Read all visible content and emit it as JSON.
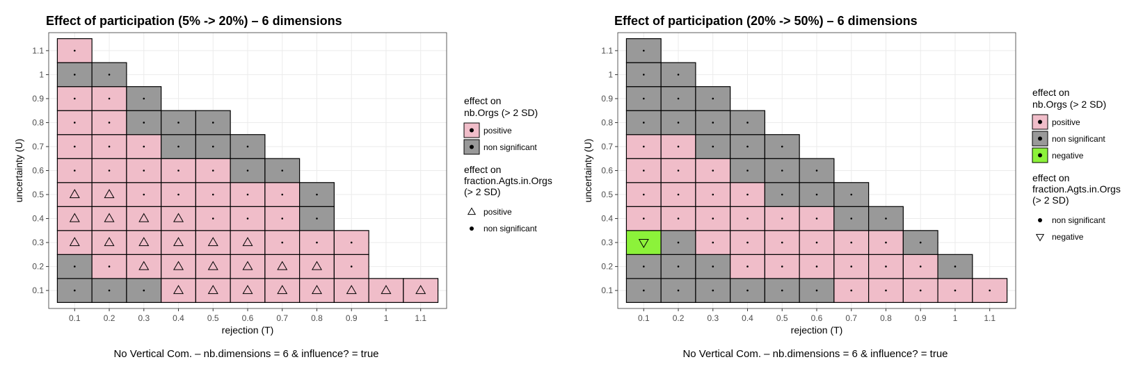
{
  "colors": {
    "positive": "#f0bdc9",
    "non_significant": "#999999",
    "negative": "#8cf23a"
  },
  "chart_data": [
    {
      "type": "heatmap",
      "title": "Effect of participation (5% -> 20%) – 6 dimensions",
      "xlabel": "rejection (T)",
      "ylabel": "uncertainty (U)",
      "caption": "No Vertical Com. – nb.dimensions = 6 & influence? = true",
      "x_ticks": [
        "0.1",
        "0.2",
        "0.3",
        "0.4",
        "0.5",
        "0.6",
        "0.7",
        "0.8",
        "0.9",
        "1",
        "1.1"
      ],
      "y_ticks": [
        "0.1",
        "0.2",
        "0.3",
        "0.4",
        "0.5",
        "0.6",
        "0.7",
        "0.8",
        "0.9",
        "1",
        "1.1"
      ],
      "legend_fill": {
        "title_lines": [
          "effect on",
          "nb.Orgs (> 2 SD)"
        ],
        "items": [
          {
            "label": "positive",
            "color": "positive"
          },
          {
            "label": "non significant",
            "color": "non_significant"
          }
        ]
      },
      "legend_shape": {
        "title_lines": [
          "effect on",
          "fraction.Agts.in.Orgs",
          "(> 2 SD)"
        ],
        "items": [
          {
            "label": "positive",
            "shape": "triangle-up"
          },
          {
            "label": "non significant",
            "shape": "dot"
          }
        ]
      },
      "rows": [
        {
          "y": "0.1",
          "fill": "NNNPPPPPPPP",
          "shape": "...^^^^^^^^"
        },
        {
          "y": "0.2",
          "fill": "NPPPPPPPP",
          "shape": "..^^^^^^."
        },
        {
          "y": "0.3",
          "fill": "PPPPPPPPP",
          "shape": "^^^^^^..."
        },
        {
          "y": "0.4",
          "fill": "PPPPPPPN",
          "shape": "^^^^...."
        },
        {
          "y": "0.5",
          "fill": "PPPPPPPN",
          "shape": "^^......"
        },
        {
          "y": "0.6",
          "fill": "PPPPPNN",
          "shape": "......."
        },
        {
          "y": "0.7",
          "fill": "PPPNNN",
          "shape": "......"
        },
        {
          "y": "0.8",
          "fill": "PPNNN",
          "shape": "....."
        },
        {
          "y": "0.9",
          "fill": "PPN",
          "shape": "..."
        },
        {
          "y": "1",
          "fill": "NN",
          "shape": ".."
        },
        {
          "y": "1.1",
          "fill": "P",
          "shape": "."
        }
      ]
    },
    {
      "type": "heatmap",
      "title": "Effect of participation (20% -> 50%) – 6 dimensions",
      "xlabel": "rejection (T)",
      "ylabel": "uncertainty (U)",
      "caption": "No Vertical Com. – nb.dimensions = 6 & influence? = true",
      "x_ticks": [
        "0.1",
        "0.2",
        "0.3",
        "0.4",
        "0.5",
        "0.6",
        "0.7",
        "0.8",
        "0.9",
        "1",
        "1.1"
      ],
      "y_ticks": [
        "0.1",
        "0.2",
        "0.3",
        "0.4",
        "0.5",
        "0.6",
        "0.7",
        "0.8",
        "0.9",
        "1",
        "1.1"
      ],
      "legend_fill": {
        "title_lines": [
          "effect on",
          "nb.Orgs (> 2 SD)"
        ],
        "items": [
          {
            "label": "positive",
            "color": "positive"
          },
          {
            "label": "non significant",
            "color": "non_significant"
          },
          {
            "label": "negative",
            "color": "negative"
          }
        ]
      },
      "legend_shape": {
        "title_lines": [
          "effect on",
          "fraction.Agts.in.Orgs",
          "(> 2 SD)"
        ],
        "items": [
          {
            "label": "non significant",
            "shape": "dot"
          },
          {
            "label": "negative",
            "shape": "triangle-down"
          }
        ]
      },
      "rows": [
        {
          "y": "0.1",
          "fill": "NNNNNNPPPPP",
          "shape": "..........."
        },
        {
          "y": "0.2",
          "fill": "NNNPPPPPPN",
          "shape": ".........."
        },
        {
          "y": "0.3",
          "fill": "GNPPPPPPN",
          "shape": "v........"
        },
        {
          "y": "0.4",
          "fill": "PPPPPPNN",
          "shape": "........"
        },
        {
          "y": "0.5",
          "fill": "PPPPNNN",
          "shape": "......."
        },
        {
          "y": "0.6",
          "fill": "PPPNNN",
          "shape": "......"
        },
        {
          "y": "0.7",
          "fill": "PPNNN",
          "shape": "....."
        },
        {
          "y": "0.8",
          "fill": "NNNN",
          "shape": "...."
        },
        {
          "y": "0.9",
          "fill": "NNN",
          "shape": "..."
        },
        {
          "y": "1",
          "fill": "NN",
          "shape": ".."
        },
        {
          "y": "1.1",
          "fill": "N",
          "shape": "."
        }
      ]
    }
  ]
}
